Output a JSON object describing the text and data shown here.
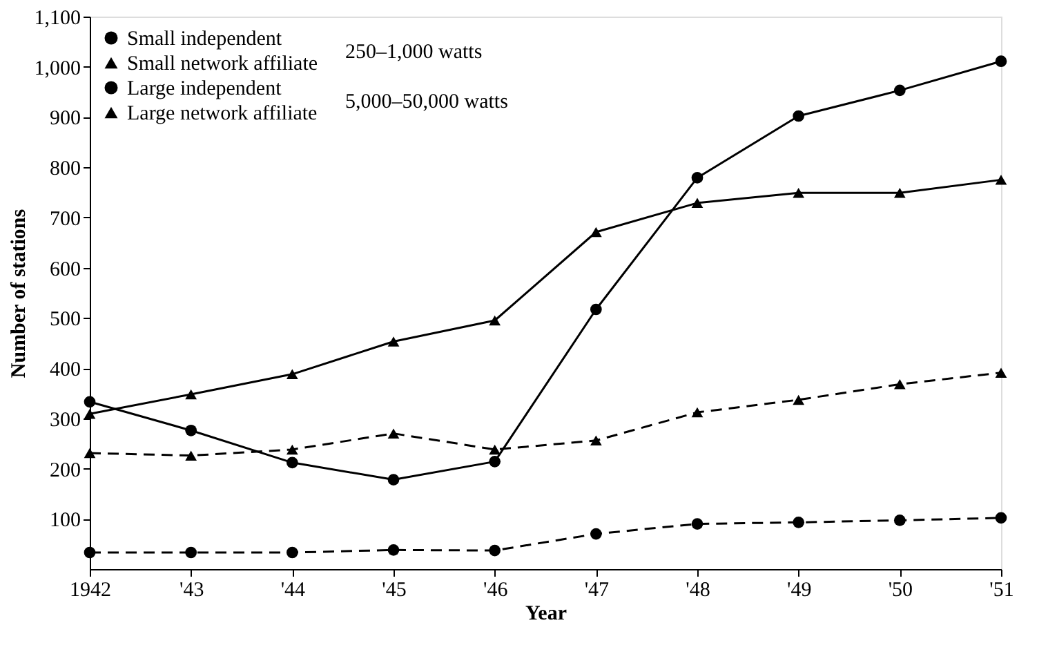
{
  "chart_data": {
    "type": "line",
    "xlabel": "Year",
    "ylabel": "Number of stations",
    "categories": [
      "1942",
      "'43",
      "'44",
      "'45",
      "'46",
      "'47",
      "'48",
      "'49",
      "'50",
      "'51"
    ],
    "series": [
      {
        "name": "Small independent",
        "color": "#000000",
        "marker": "circle",
        "line_style": "solid",
        "values": [
          333,
          276,
          212,
          178,
          214,
          517,
          779,
          902,
          953,
          1011
        ]
      },
      {
        "name": "Small network affiliate",
        "color": "#000000",
        "marker": "triangle",
        "line_style": "solid",
        "values": [
          309,
          348,
          388,
          453,
          495,
          671,
          729,
          749,
          749,
          775
        ]
      },
      {
        "name": "Large independent",
        "color": "#000000",
        "marker": "circle",
        "line_style": "dashed",
        "values": [
          33,
          33,
          33,
          38,
          37,
          70,
          90,
          93,
          97,
          102
        ]
      },
      {
        "name": "Large network affiliate",
        "color": "#000000",
        "marker": "triangle",
        "line_style": "dashed",
        "values": [
          231,
          226,
          238,
          270,
          238,
          256,
          312,
          337,
          368,
          391
        ]
      }
    ],
    "ylim": [
      0,
      1100
    ],
    "yticks": [
      100,
      200,
      300,
      400,
      500,
      600,
      700,
      800,
      900,
      {
        "value": 1000,
        "label": "1,000"
      },
      {
        "value": 1100,
        "label": "1,100"
      }
    ],
    "annotations": [
      "250–1,000 watts",
      "5,000–50,000 watts"
    ],
    "legend": "top left",
    "grid": false
  }
}
